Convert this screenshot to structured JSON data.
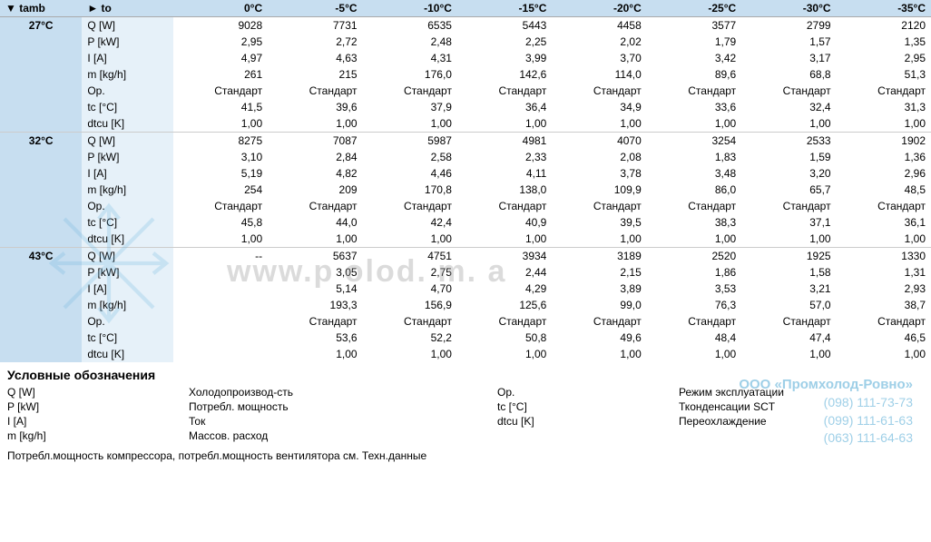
{
  "header": {
    "tamb_label": "▼ tamb",
    "to_label": "► to",
    "columns": [
      "0°C",
      "-5°C",
      "-10°C",
      "-15°C",
      "-20°C",
      "-25°C",
      "-30°C",
      "-35°C"
    ]
  },
  "params": [
    "Q [W]",
    "P [kW]",
    "I [A]",
    "m [kg/h]",
    "Op.",
    "tc [°C]",
    "dtcu [K]"
  ],
  "groups": [
    {
      "tamb": "27°C",
      "rows": [
        [
          "9028",
          "7731",
          "6535",
          "5443",
          "4458",
          "3577",
          "2799",
          "2120"
        ],
        [
          "2,95",
          "2,72",
          "2,48",
          "2,25",
          "2,02",
          "1,79",
          "1,57",
          "1,35"
        ],
        [
          "4,97",
          "4,63",
          "4,31",
          "3,99",
          "3,70",
          "3,42",
          "3,17",
          "2,95"
        ],
        [
          "261",
          "215",
          "176,0",
          "142,6",
          "114,0",
          "89,6",
          "68,8",
          "51,3"
        ],
        [
          "Стандарт",
          "Стандарт",
          "Стандарт",
          "Стандарт",
          "Стандарт",
          "Стандарт",
          "Стандарт",
          "Стандарт"
        ],
        [
          "41,5",
          "39,6",
          "37,9",
          "36,4",
          "34,9",
          "33,6",
          "32,4",
          "31,3"
        ],
        [
          "1,00",
          "1,00",
          "1,00",
          "1,00",
          "1,00",
          "1,00",
          "1,00",
          "1,00"
        ]
      ]
    },
    {
      "tamb": "32°C",
      "rows": [
        [
          "8275",
          "7087",
          "5987",
          "4981",
          "4070",
          "3254",
          "2533",
          "1902"
        ],
        [
          "3,10",
          "2,84",
          "2,58",
          "2,33",
          "2,08",
          "1,83",
          "1,59",
          "1,36"
        ],
        [
          "5,19",
          "4,82",
          "4,46",
          "4,11",
          "3,78",
          "3,48",
          "3,20",
          "2,96"
        ],
        [
          "254",
          "209",
          "170,8",
          "138,0",
          "109,9",
          "86,0",
          "65,7",
          "48,5"
        ],
        [
          "Стандарт",
          "Стандарт",
          "Стандарт",
          "Стандарт",
          "Стандарт",
          "Стандарт",
          "Стандарт",
          "Стандарт"
        ],
        [
          "45,8",
          "44,0",
          "42,4",
          "40,9",
          "39,5",
          "38,3",
          "37,1",
          "36,1"
        ],
        [
          "1,00",
          "1,00",
          "1,00",
          "1,00",
          "1,00",
          "1,00",
          "1,00",
          "1,00"
        ]
      ]
    },
    {
      "tamb": "43°C",
      "rows": [
        [
          "--",
          "5637",
          "4751",
          "3934",
          "3189",
          "2520",
          "1925",
          "1330"
        ],
        [
          "",
          "3,05",
          "2,75",
          "2,44",
          "2,15",
          "1,86",
          "1,58",
          "1,31"
        ],
        [
          "",
          "5,14",
          "4,70",
          "4,29",
          "3,89",
          "3,53",
          "3,21",
          "2,93"
        ],
        [
          "",
          "193,3",
          "156,9",
          "125,6",
          "99,0",
          "76,3",
          "57,0",
          "38,7"
        ],
        [
          "",
          "Стандарт",
          "Стандарт",
          "Стандарт",
          "Стандарт",
          "Стандарт",
          "Стандарт",
          "Стандарт"
        ],
        [
          "",
          "53,6",
          "52,2",
          "50,8",
          "49,6",
          "48,4",
          "47,4",
          "46,5"
        ],
        [
          "",
          "1,00",
          "1,00",
          "1,00",
          "1,00",
          "1,00",
          "1,00",
          "1,00"
        ]
      ]
    }
  ],
  "legend": {
    "title": "Условные обозначения",
    "items": [
      {
        "sym": "Q [W]",
        "desc": "Холодопроизвод-сть"
      },
      {
        "sym": "P [kW]",
        "desc": "Потребл. мощность"
      },
      {
        "sym": "I [A]",
        "desc": "Ток"
      },
      {
        "sym": "m [kg/h]",
        "desc": "Массов. расход"
      },
      {
        "sym": "Op.",
        "desc": "Режим эксплуатации"
      },
      {
        "sym": "tc [°C]",
        "desc": "Тконденсации SCT"
      },
      {
        "sym": "dtcu [K]",
        "desc": "Переохлаждение"
      }
    ]
  },
  "footnote": "Потребл.мощность компрессора, потребл.мощность вентилятора см. Техн.данные",
  "watermark_text": "www.p    olod.    m.  a",
  "contact": {
    "company": "ООО «Промхолод-Ровно»",
    "phones": [
      "(098) 111-73-73",
      "(099) 111-61-63",
      "(063) 111-64-63"
    ]
  },
  "colors": {
    "header_bg": "#c7def0",
    "param_bg": "#e6f1f9",
    "contact": "#5fb0d8"
  }
}
